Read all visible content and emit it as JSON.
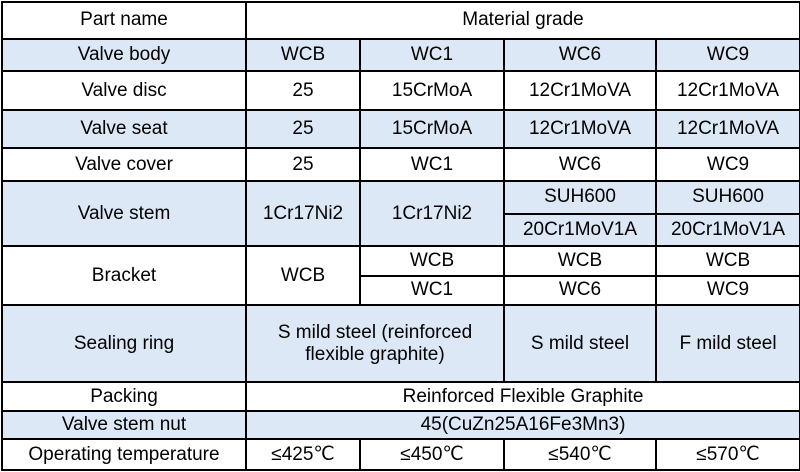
{
  "table": {
    "header": {
      "part_name": "Part name",
      "material_grade": "Material grade"
    },
    "rows": {
      "valve_body": {
        "label": "Valve body",
        "values": [
          "WCB",
          "WC1",
          "WC6",
          "WC9"
        ]
      },
      "valve_disc": {
        "label": "Valve disc",
        "values": [
          "25",
          "15CrMoA",
          "12Cr1MoVA",
          "12Cr1MoVA"
        ]
      },
      "valve_seat": {
        "label": "Valve seat",
        "values": [
          "25",
          "15CrMoA",
          "12Cr1MoVA",
          "12Cr1MoVA"
        ]
      },
      "valve_cover": {
        "label": "Valve cover",
        "values": [
          "25",
          "WC1",
          "WC6",
          "WC9"
        ]
      },
      "valve_stem": {
        "label": "Valve stem",
        "wcb": "1Cr17Ni2",
        "wc1": "1Cr17Ni2",
        "wc6_top": "SUH600",
        "wc6_bottom": "20Cr1MoV1A",
        "wc9_top": "SUH600",
        "wc9_bottom": "20Cr1MoV1A"
      },
      "bracket": {
        "label": "Bracket",
        "wcb": "WCB",
        "top": [
          "WCB",
          "WCB",
          "WCB"
        ],
        "bottom": [
          "WC1",
          "WC6",
          "WC9"
        ]
      },
      "sealing_ring": {
        "label": "Sealing ring",
        "wcb_wc1": "S mild steel (reinforced flexible graphite)",
        "wc6": "S mild steel",
        "wc9": "F mild steel"
      },
      "packing": {
        "label": "Packing",
        "value": "Reinforced Flexible Graphite"
      },
      "valve_stem_nut": {
        "label": "Valve stem nut",
        "value": "45(CuZn25A16Fe3Mn3)"
      },
      "operating_temperature": {
        "label": "Operating temperature",
        "values": [
          "≤425℃",
          "≤450℃",
          "≤540℃",
          "≤570℃"
        ]
      }
    }
  },
  "colors": {
    "shade": "#dde8f6",
    "white": "#ffffff",
    "border": "#000000"
  }
}
